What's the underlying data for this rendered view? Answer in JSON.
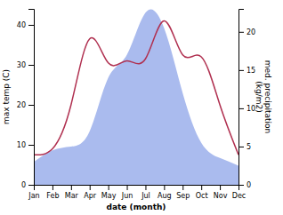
{
  "chart_data": {
    "type": "line",
    "categories": [
      "Jan",
      "Feb",
      "Mar",
      "Apr",
      "May",
      "Jun",
      "Jul",
      "Aug",
      "Sep",
      "Oct",
      "Nov",
      "Dec"
    ],
    "xlabel": "date (month)",
    "ylabel": "max temp (C)",
    "y2label": "med. precipitation\n(kg/m2)",
    "series": [
      {
        "type": "area",
        "axis": "y2",
        "color": "#aabbee",
        "values": [
          3.0,
          4.5,
          5.0,
          7.0,
          14.0,
          17.0,
          22.5,
          20.5,
          12.0,
          5.5,
          3.5,
          2.5
        ]
      },
      {
        "type": "line",
        "color": "#b03050",
        "values": [
          7.5,
          9.0,
          20.0,
          36.5,
          30.5,
          31.0,
          31.5,
          41.0,
          32.5,
          32.0,
          20.0,
          7.5
        ]
      }
    ],
    "ylim": [
      0,
      44
    ],
    "yticks": [
      0,
      10,
      20,
      30,
      40
    ],
    "y2lim": [
      0,
      23
    ],
    "y2ticks": [
      0,
      5,
      10,
      15,
      20
    ],
    "grid": false
  }
}
